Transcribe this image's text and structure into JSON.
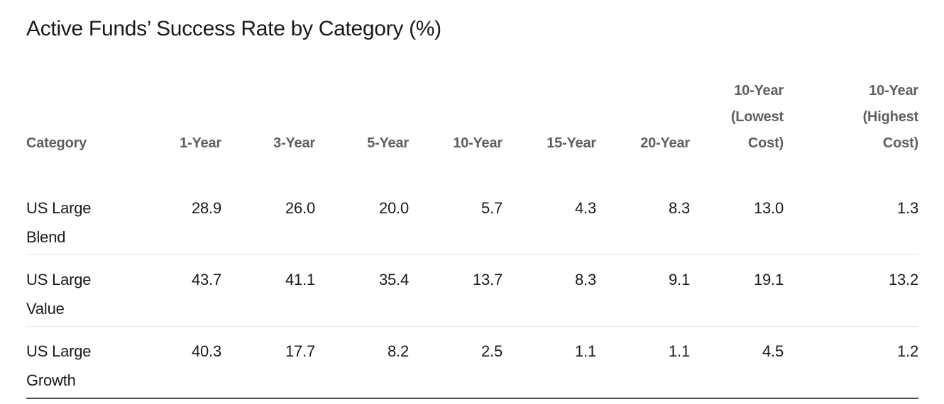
{
  "title": "Active Funds’ Success Rate by Category (%)",
  "table": {
    "columns": [
      "Category",
      "1-Year",
      "3-Year",
      "5-Year",
      "10-Year",
      "15-Year",
      "20-Year",
      "10-Year\n(Lowest\nCost)",
      "10-Year\n(Highest\nCost)"
    ],
    "rows": [
      {
        "category": "US Large\nBlend",
        "values": [
          "28.9",
          "26.0",
          "20.0",
          "5.7",
          "4.3",
          "8.3",
          "13.0",
          "1.3"
        ]
      },
      {
        "category": "US Large\nValue",
        "values": [
          "43.7",
          "41.1",
          "35.4",
          "13.7",
          "8.3",
          "9.1",
          "19.1",
          "13.2"
        ]
      },
      {
        "category": "US Large\nGrowth",
        "values": [
          "40.3",
          "17.7",
          "8.2",
          "2.5",
          "1.1",
          "1.1",
          "4.5",
          "1.2"
        ]
      }
    ]
  },
  "colors": {
    "title_text": "#1a1a1a",
    "header_text": "#5f5f5f",
    "body_text": "#1a1a1a",
    "row_separator": "#e3e3e3",
    "bottom_rule": "#4a4a4a",
    "background": "#ffffff"
  },
  "chart_data": {
    "type": "table",
    "title": "Active Funds’ Success Rate by Category (%)",
    "columns": [
      "Category",
      "1-Year",
      "3-Year",
      "5-Year",
      "10-Year",
      "15-Year",
      "20-Year",
      "10-Year (Lowest Cost)",
      "10-Year (Highest Cost)"
    ],
    "categories": [
      "US Large Blend",
      "US Large Value",
      "US Large Growth"
    ],
    "series": [
      {
        "name": "1-Year",
        "values": [
          28.9,
          43.7,
          40.3
        ]
      },
      {
        "name": "3-Year",
        "values": [
          26.0,
          41.1,
          17.7
        ]
      },
      {
        "name": "5-Year",
        "values": [
          20.0,
          35.4,
          8.2
        ]
      },
      {
        "name": "10-Year",
        "values": [
          5.7,
          13.7,
          2.5
        ]
      },
      {
        "name": "15-Year",
        "values": [
          4.3,
          8.3,
          1.1
        ]
      },
      {
        "name": "20-Year",
        "values": [
          8.3,
          9.1,
          1.1
        ]
      },
      {
        "name": "10-Year (Lowest Cost)",
        "values": [
          13.0,
          19.1,
          4.5
        ]
      },
      {
        "name": "10-Year (Highest Cost)",
        "values": [
          1.3,
          13.2,
          1.2
        ]
      }
    ],
    "units": "%"
  }
}
